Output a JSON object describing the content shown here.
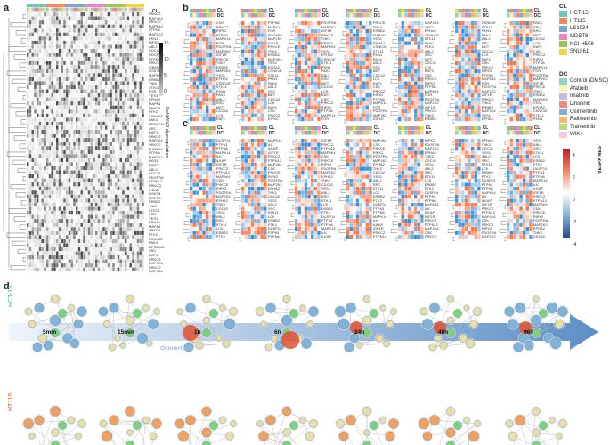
{
  "panels": {
    "a": {
      "label": "a",
      "colorbar_title": "DeMAND dysregulation",
      "ticks": [
        "15",
        "10",
        "5",
        "0"
      ],
      "genes": [
        "PRKCZ",
        "MAP4K4",
        "PRKCE",
        "MAPK14",
        "PTPN6",
        "MAP2K2",
        "PKN1",
        "RIPK2",
        "ABL2",
        "CDC42",
        "PDGFRA",
        "PTPN12",
        "PRKCQ",
        "IKBKE",
        "GSK3B",
        "MAPK8",
        "ERBB2",
        "TNIK",
        "STK11",
        "FGR",
        "YES1",
        "EPHA2",
        "MAPK1",
        "PRKD2",
        "PTK2",
        "CSNK1E",
        "PAK4",
        "RPS6KA1",
        "SRC",
        "RAF1"
      ]
    },
    "b": {
      "label": "b"
    },
    "c": {
      "label": "c"
    },
    "d": {
      "label": "d"
    }
  },
  "heatmap_header": {
    "cl": "CL",
    "dc": "DC"
  },
  "genes_b": [
    "CSK",
    "PRKCZ",
    "RIPK2",
    "PTPN6",
    "MAPK14",
    "FGR",
    "PDGFRA",
    "MAP2K2",
    "IGF1R",
    "PRKCE",
    "TNK2",
    "ERBB2",
    "MAP4K4",
    "YES1",
    "EPHA2",
    "CSNK1E",
    "STK11",
    "PKN1",
    "PAK4",
    "ABL2",
    "SRC",
    "MET",
    "CDC42",
    "LCK",
    "RAF1"
  ],
  "genes_c": [
    "DUSP14",
    "PTPN1",
    "PTPN6",
    "MAPK14",
    "ILK",
    "ILKAP",
    "IGF1R",
    "PRKCZ",
    "PTPN12",
    "MAP4K4",
    "CSK",
    "PRKCE",
    "RIPK2",
    "PDGFRA",
    "MAP2K2",
    "EPHA2",
    "TNK2",
    "CDC42",
    "YES1",
    "ABL2",
    "SRC",
    "STK11",
    "LCK",
    "ERBB2",
    "PTK2"
  ],
  "legend": {
    "cl_title": "CL",
    "cell_lines": [
      {
        "name": "HCT-15",
        "color": "#6fc6b2"
      },
      {
        "name": "HT115",
        "color": "#f08a5d"
      },
      {
        "name": "LS1034",
        "color": "#7ea2ce"
      },
      {
        "name": "MDST8",
        "color": "#e986c1"
      },
      {
        "name": "NCI-H508",
        "color": "#99c55b"
      },
      {
        "name": "SNU-61",
        "color": "#f0d44a"
      }
    ],
    "dc_title": "DC",
    "drugs": [
      {
        "name": "Control (DMSO)",
        "color": "#8fd3c3"
      },
      {
        "name": "Afatinib",
        "color": "#f7f4b0"
      },
      {
        "name": "Imatinib",
        "color": "#c4bde0"
      },
      {
        "name": "Linsitinib",
        "color": "#f08a7e"
      },
      {
        "name": "Osimertinib",
        "color": "#82aed4"
      },
      {
        "name": "Ralimetinib",
        "color": "#f6b86a"
      },
      {
        "name": "Trametinib",
        "color": "#b9da7e"
      },
      {
        "name": "WIK4",
        "color": "#f5c9dd"
      }
    ],
    "nes_title": "VESPA NES",
    "nes_ticks": [
      "4",
      "2",
      "0",
      "-2",
      "-4"
    ]
  },
  "timeline": {
    "drug": "Osimertinib",
    "points": [
      "5min",
      "15min",
      "1h",
      "6h",
      "24h",
      "48h",
      "96h"
    ]
  },
  "rows": [
    {
      "name": "HCT-15",
      "color": "#3bb08f"
    },
    {
      "name": "HT115",
      "color": "#e2572c"
    }
  ]
}
